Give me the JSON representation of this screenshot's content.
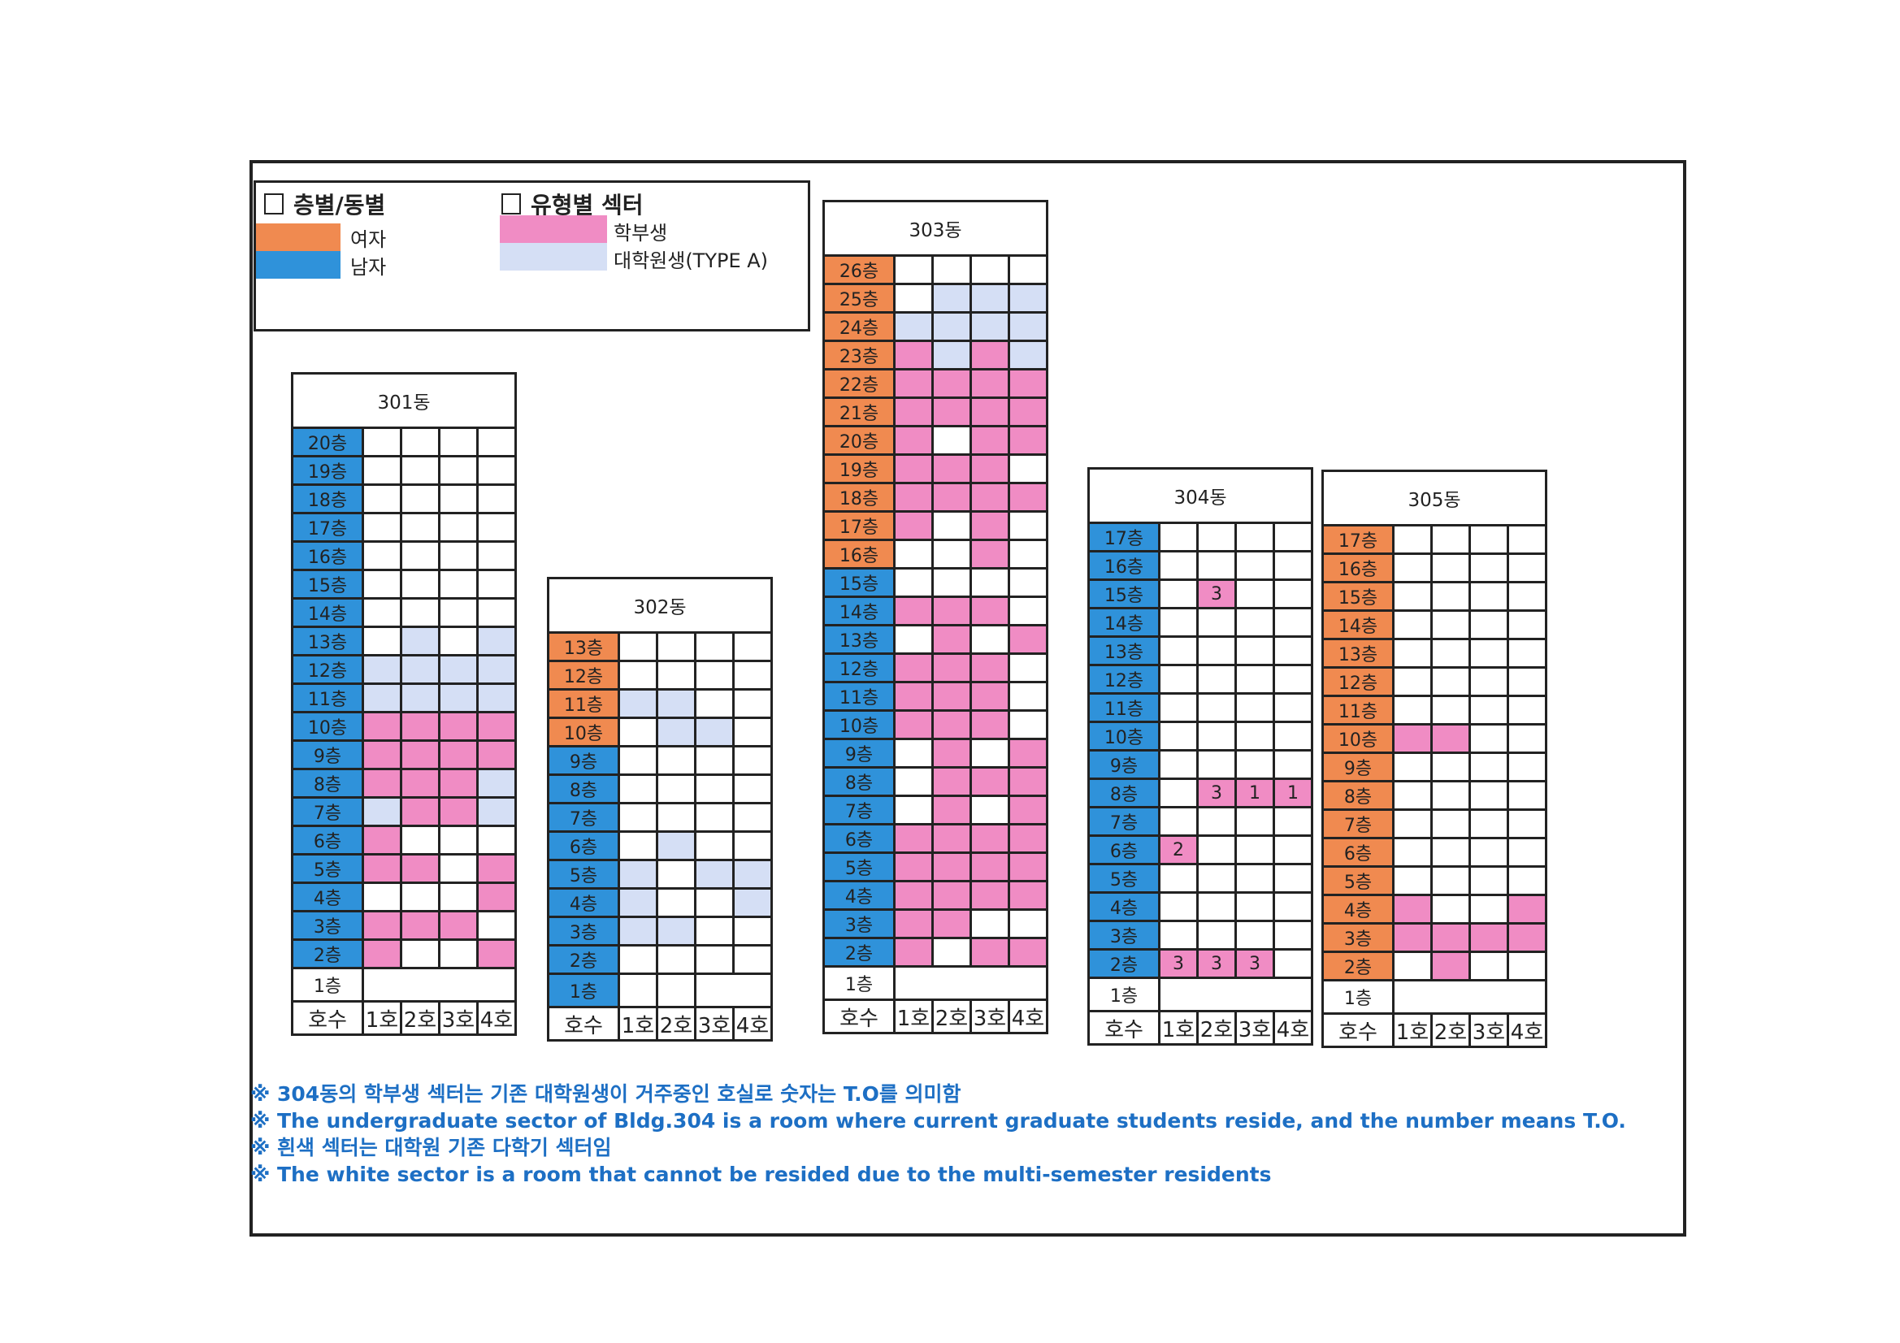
{
  "colors": {
    "female": "#f08a50",
    "male": "#2f92da",
    "undergrad": "#f08cc4",
    "grad": "#d5dff5",
    "empty": "#ffffff"
  },
  "legend": {
    "group1_title": "층별/동별",
    "female_label": "여자",
    "male_label": "남자",
    "group2_title": "유형별 섹터",
    "undergrad_label": "학부생",
    "grad_label": "대학원생(TYPE A)"
  },
  "room_header": "호수",
  "room_labels": [
    "1호",
    "2호",
    "3호",
    "4호"
  ],
  "buildings": [
    {
      "name": "301동",
      "first_floor": {
        "label": "1층",
        "gender": null,
        "cells": "merged"
      },
      "floors": [
        {
          "label": "20층",
          "gender": "M",
          "cells": [
            "w",
            "w",
            "w",
            "w"
          ]
        },
        {
          "label": "19층",
          "gender": "M",
          "cells": [
            "w",
            "w",
            "w",
            "w"
          ]
        },
        {
          "label": "18층",
          "gender": "M",
          "cells": [
            "w",
            "w",
            "w",
            "w"
          ]
        },
        {
          "label": "17층",
          "gender": "M",
          "cells": [
            "w",
            "w",
            "w",
            "w"
          ]
        },
        {
          "label": "16층",
          "gender": "M",
          "cells": [
            "w",
            "w",
            "w",
            "w"
          ]
        },
        {
          "label": "15층",
          "gender": "M",
          "cells": [
            "w",
            "w",
            "w",
            "w"
          ]
        },
        {
          "label": "14층",
          "gender": "M",
          "cells": [
            "w",
            "w",
            "w",
            "w"
          ]
        },
        {
          "label": "13층",
          "gender": "M",
          "cells": [
            "w",
            "g",
            "w",
            "g"
          ]
        },
        {
          "label": "12층",
          "gender": "M",
          "cells": [
            "g",
            "g",
            "g",
            "g"
          ]
        },
        {
          "label": "11층",
          "gender": "M",
          "cells": [
            "g",
            "g",
            "g",
            "g"
          ]
        },
        {
          "label": "10층",
          "gender": "M",
          "cells": [
            "u",
            "u",
            "u",
            "u"
          ]
        },
        {
          "label": "9층",
          "gender": "M",
          "cells": [
            "u",
            "u",
            "u",
            "u"
          ]
        },
        {
          "label": "8층",
          "gender": "M",
          "cells": [
            "u",
            "u",
            "u",
            "g"
          ]
        },
        {
          "label": "7층",
          "gender": "M",
          "cells": [
            "g",
            "u",
            "u",
            "g"
          ]
        },
        {
          "label": "6층",
          "gender": "M",
          "cells": [
            "u",
            "w",
            "w",
            "w"
          ]
        },
        {
          "label": "5층",
          "gender": "M",
          "cells": [
            "u",
            "u",
            "w",
            "u"
          ]
        },
        {
          "label": "4층",
          "gender": "M",
          "cells": [
            "w",
            "w",
            "w",
            "u"
          ]
        },
        {
          "label": "3층",
          "gender": "M",
          "cells": [
            "u",
            "u",
            "u",
            "w"
          ]
        },
        {
          "label": "2층",
          "gender": "M",
          "cells": [
            "u",
            "w",
            "w",
            "u"
          ]
        }
      ]
    },
    {
      "name": "302동",
      "first_floor": {
        "label": "1층",
        "gender": "M",
        "cells": "split"
      },
      "floors": [
        {
          "label": "13층",
          "gender": "F",
          "cells": [
            "w",
            "w",
            "w",
            "w"
          ]
        },
        {
          "label": "12층",
          "gender": "F",
          "cells": [
            "w",
            "w",
            "w",
            "w"
          ]
        },
        {
          "label": "11층",
          "gender": "F",
          "cells": [
            "g",
            "g",
            "w",
            "w"
          ]
        },
        {
          "label": "10층",
          "gender": "F",
          "cells": [
            "w",
            "g",
            "g",
            "w"
          ]
        },
        {
          "label": "9층",
          "gender": "M",
          "cells": [
            "w",
            "w",
            "w",
            "w"
          ]
        },
        {
          "label": "8층",
          "gender": "M",
          "cells": [
            "w",
            "w",
            "w",
            "w"
          ]
        },
        {
          "label": "7층",
          "gender": "M",
          "cells": [
            "w",
            "w",
            "w",
            "w"
          ]
        },
        {
          "label": "6층",
          "gender": "M",
          "cells": [
            "w",
            "g",
            "w",
            "w"
          ]
        },
        {
          "label": "5층",
          "gender": "M",
          "cells": [
            "g",
            "w",
            "g",
            "g"
          ]
        },
        {
          "label": "4층",
          "gender": "M",
          "cells": [
            "g",
            "w",
            "w",
            "g"
          ]
        },
        {
          "label": "3층",
          "gender": "M",
          "cells": [
            "g",
            "g",
            "w",
            "w"
          ]
        },
        {
          "label": "2층",
          "gender": "M",
          "cells": [
            "w",
            "w",
            "w",
            "w"
          ]
        }
      ]
    },
    {
      "name": "303동",
      "first_floor": {
        "label": "1층",
        "gender": null,
        "cells": "merged"
      },
      "floors": [
        {
          "label": "26층",
          "gender": "F",
          "cells": [
            "w",
            "w",
            "w",
            "w"
          ]
        },
        {
          "label": "25층",
          "gender": "F",
          "cells": [
            "w",
            "g",
            "g",
            "g"
          ]
        },
        {
          "label": "24층",
          "gender": "F",
          "cells": [
            "g",
            "g",
            "g",
            "g"
          ]
        },
        {
          "label": "23층",
          "gender": "F",
          "cells": [
            "u",
            "g",
            "u",
            "g"
          ]
        },
        {
          "label": "22층",
          "gender": "F",
          "cells": [
            "u",
            "u",
            "u",
            "u"
          ]
        },
        {
          "label": "21층",
          "gender": "F",
          "cells": [
            "u",
            "u",
            "u",
            "u"
          ]
        },
        {
          "label": "20층",
          "gender": "F",
          "cells": [
            "u",
            "w",
            "u",
            "u"
          ]
        },
        {
          "label": "19층",
          "gender": "F",
          "cells": [
            "u",
            "u",
            "u",
            "w"
          ]
        },
        {
          "label": "18층",
          "gender": "F",
          "cells": [
            "u",
            "u",
            "u",
            "u"
          ]
        },
        {
          "label": "17층",
          "gender": "F",
          "cells": [
            "u",
            "w",
            "u",
            "w"
          ]
        },
        {
          "label": "16층",
          "gender": "F",
          "cells": [
            "w",
            "w",
            "u",
            "w"
          ]
        },
        {
          "label": "15층",
          "gender": "M",
          "cells": [
            "w",
            "w",
            "w",
            "w"
          ]
        },
        {
          "label": "14층",
          "gender": "M",
          "cells": [
            "u",
            "u",
            "u",
            "w"
          ]
        },
        {
          "label": "13층",
          "gender": "M",
          "cells": [
            "w",
            "u",
            "w",
            "u"
          ]
        },
        {
          "label": "12층",
          "gender": "M",
          "cells": [
            "u",
            "u",
            "u",
            "w"
          ]
        },
        {
          "label": "11층",
          "gender": "M",
          "cells": [
            "u",
            "u",
            "u",
            "w"
          ]
        },
        {
          "label": "10층",
          "gender": "M",
          "cells": [
            "u",
            "u",
            "u",
            "w"
          ]
        },
        {
          "label": "9층",
          "gender": "M",
          "cells": [
            "w",
            "u",
            "w",
            "u"
          ]
        },
        {
          "label": "8층",
          "gender": "M",
          "cells": [
            "w",
            "u",
            "u",
            "u"
          ]
        },
        {
          "label": "7층",
          "gender": "M",
          "cells": [
            "w",
            "u",
            "w",
            "u"
          ]
        },
        {
          "label": "6층",
          "gender": "M",
          "cells": [
            "u",
            "u",
            "u",
            "u"
          ]
        },
        {
          "label": "5층",
          "gender": "M",
          "cells": [
            "u",
            "u",
            "u",
            "u"
          ]
        },
        {
          "label": "4층",
          "gender": "M",
          "cells": [
            "u",
            "u",
            "u",
            "u"
          ]
        },
        {
          "label": "3층",
          "gender": "M",
          "cells": [
            "u",
            "u",
            "w",
            "w"
          ]
        },
        {
          "label": "2층",
          "gender": "M",
          "cells": [
            "u",
            "w",
            "u",
            "u"
          ]
        }
      ]
    },
    {
      "name": "304동",
      "first_floor": {
        "label": "1층",
        "gender": null,
        "cells": "merged"
      },
      "floors": [
        {
          "label": "17층",
          "gender": "M",
          "cells": [
            "w",
            "w",
            "w",
            "w"
          ]
        },
        {
          "label": "16층",
          "gender": "M",
          "cells": [
            "w",
            "w",
            "w",
            "w"
          ]
        },
        {
          "label": "15층",
          "gender": "M",
          "cells": [
            "w",
            "u:3",
            "w",
            "w"
          ]
        },
        {
          "label": "14층",
          "gender": "M",
          "cells": [
            "w",
            "w",
            "w",
            "w"
          ]
        },
        {
          "label": "13층",
          "gender": "M",
          "cells": [
            "w",
            "w",
            "w",
            "w"
          ]
        },
        {
          "label": "12층",
          "gender": "M",
          "cells": [
            "w",
            "w",
            "w",
            "w"
          ]
        },
        {
          "label": "11층",
          "gender": "M",
          "cells": [
            "w",
            "w",
            "w",
            "w"
          ]
        },
        {
          "label": "10층",
          "gender": "M",
          "cells": [
            "w",
            "w",
            "w",
            "w"
          ]
        },
        {
          "label": "9층",
          "gender": "M",
          "cells": [
            "w",
            "w",
            "w",
            "w"
          ]
        },
        {
          "label": "8층",
          "gender": "M",
          "cells": [
            "w",
            "u:3",
            "u:1",
            "u:1"
          ]
        },
        {
          "label": "7층",
          "gender": "M",
          "cells": [
            "w",
            "w",
            "w",
            "w"
          ]
        },
        {
          "label": "6층",
          "gender": "M",
          "cells": [
            "u:2",
            "w",
            "w",
            "w"
          ]
        },
        {
          "label": "5층",
          "gender": "M",
          "cells": [
            "w",
            "w",
            "w",
            "w"
          ]
        },
        {
          "label": "4층",
          "gender": "M",
          "cells": [
            "w",
            "w",
            "w",
            "w"
          ]
        },
        {
          "label": "3층",
          "gender": "M",
          "cells": [
            "w",
            "w",
            "w",
            "w"
          ]
        },
        {
          "label": "2층",
          "gender": "M",
          "cells": [
            "u:3",
            "u:3",
            "u:3",
            "w"
          ]
        }
      ]
    },
    {
      "name": "305동",
      "first_floor": {
        "label": "1층",
        "gender": null,
        "cells": "merged"
      },
      "floors": [
        {
          "label": "17층",
          "gender": "F",
          "cells": [
            "w",
            "w",
            "w",
            "w"
          ]
        },
        {
          "label": "16층",
          "gender": "F",
          "cells": [
            "w",
            "w",
            "w",
            "w"
          ]
        },
        {
          "label": "15층",
          "gender": "F",
          "cells": [
            "w",
            "w",
            "w",
            "w"
          ]
        },
        {
          "label": "14층",
          "gender": "F",
          "cells": [
            "w",
            "w",
            "w",
            "w"
          ]
        },
        {
          "label": "13층",
          "gender": "F",
          "cells": [
            "w",
            "w",
            "w",
            "w"
          ]
        },
        {
          "label": "12층",
          "gender": "F",
          "cells": [
            "w",
            "w",
            "w",
            "w"
          ]
        },
        {
          "label": "11층",
          "gender": "F",
          "cells": [
            "w",
            "w",
            "w",
            "w"
          ]
        },
        {
          "label": "10층",
          "gender": "F",
          "cells": [
            "u",
            "u",
            "w",
            "w"
          ]
        },
        {
          "label": "9층",
          "gender": "F",
          "cells": [
            "w",
            "w",
            "w",
            "w"
          ]
        },
        {
          "label": "8층",
          "gender": "F",
          "cells": [
            "w",
            "w",
            "w",
            "w"
          ]
        },
        {
          "label": "7층",
          "gender": "F",
          "cells": [
            "w",
            "w",
            "w",
            "w"
          ]
        },
        {
          "label": "6층",
          "gender": "F",
          "cells": [
            "w",
            "w",
            "w",
            "w"
          ]
        },
        {
          "label": "5층",
          "gender": "F",
          "cells": [
            "w",
            "w",
            "w",
            "w"
          ]
        },
        {
          "label": "4층",
          "gender": "F",
          "cells": [
            "u",
            "w",
            "w",
            "u"
          ]
        },
        {
          "label": "3층",
          "gender": "F",
          "cells": [
            "u",
            "u",
            "u",
            "u"
          ]
        },
        {
          "label": "2층",
          "gender": "F",
          "cells": [
            "w",
            "u",
            "w",
            "w"
          ]
        }
      ]
    }
  ],
  "notes": [
    "※ 304동의 학부생 섹터는 기존 대학원생이 거주중인 호실로 숫자는 T.O를 의미함",
    "※ The undergraduate sector of Bldg.304 is a room where current graduate students reside, and the number means T.O.",
    "※ 흰색 섹터는 대학원 기존 다학기 섹터임",
    "※ The white sector is a room that cannot be resided due to the multi-semester residents"
  ]
}
